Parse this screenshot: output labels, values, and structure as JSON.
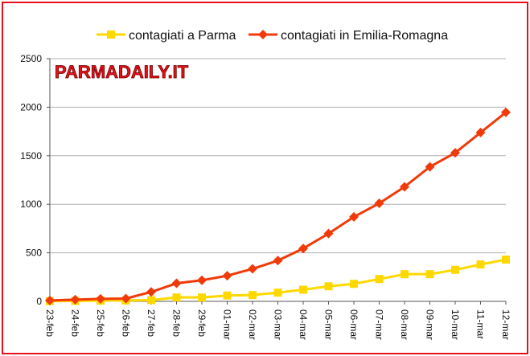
{
  "chart_data": {
    "type": "line",
    "title": "",
    "watermark": "PARMADAILY.IT",
    "xlabel": "",
    "ylabel": "",
    "ylim": [
      0,
      2500
    ],
    "yticks": [
      0,
      500,
      1000,
      1500,
      2000,
      2500
    ],
    "grid": "horizontal",
    "legend_position": "top",
    "categories": [
      "23-feb",
      "24-feb",
      "25-feb",
      "26-feb",
      "27-feb",
      "28-feb",
      "29-feb",
      "01-mar",
      "02-mar",
      "03-mar",
      "04-mar",
      "05-mar",
      "06-mar",
      "07-mar",
      "08-mar",
      "09-mar",
      "10-mar",
      "11-mar",
      "12-mar"
    ],
    "series": [
      {
        "name": "contagiati a Parma",
        "color": "#ffd800",
        "marker": "square",
        "values": [
          2,
          4,
          7,
          9,
          13,
          40,
          40,
          60,
          65,
          90,
          120,
          155,
          180,
          230,
          280,
          280,
          325,
          380,
          430
        ]
      },
      {
        "name": "contagiati in Emilia-Romagna",
        "color": "#f03a0a",
        "marker": "diamond",
        "values": [
          9,
          18,
          26,
          29,
          97,
          186,
          217,
          264,
          335,
          420,
          544,
          698,
          870,
          1010,
          1180,
          1386,
          1530,
          1739,
          1947
        ]
      }
    ]
  }
}
